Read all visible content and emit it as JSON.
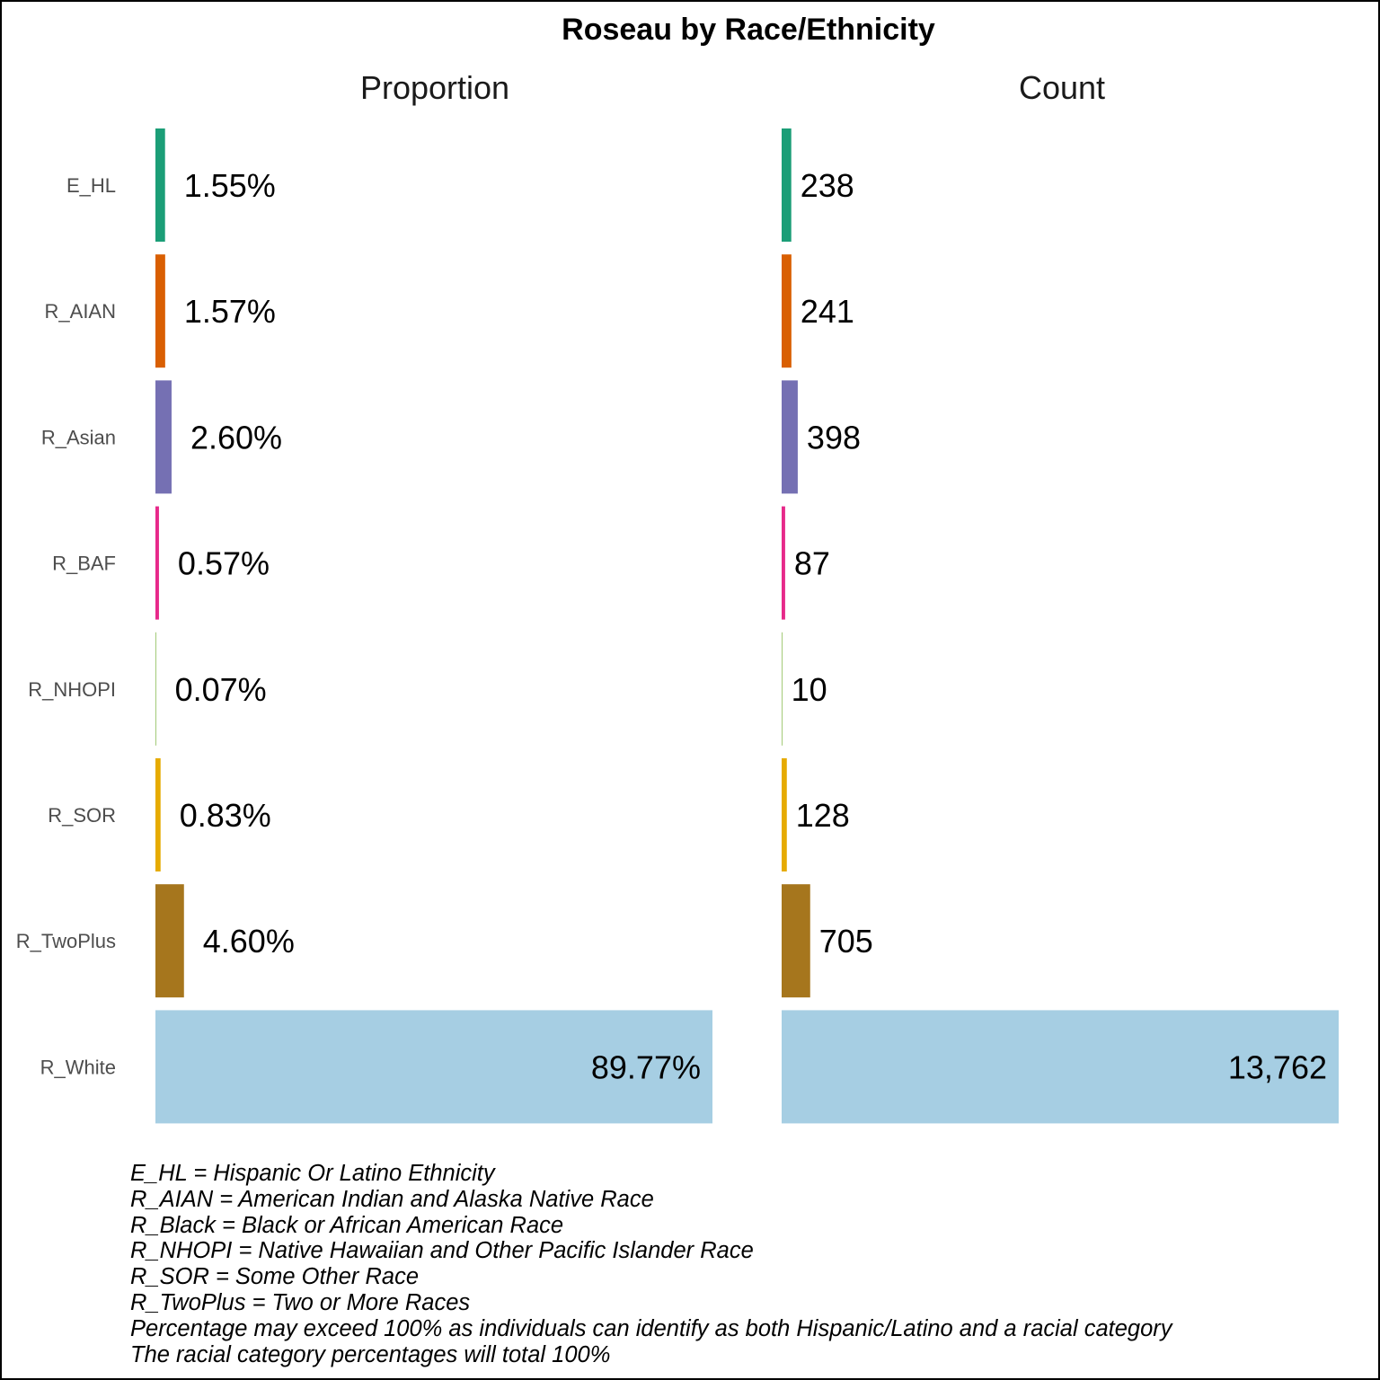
{
  "chart_data": {
    "type": "bar",
    "orientation": "horizontal",
    "title": "Roseau by Race/Ethnicity",
    "panels": [
      "Proportion",
      "Count"
    ],
    "categories": [
      "E_HL",
      "R_AIAN",
      "R_Asian",
      "R_BAF",
      "R_NHOPI",
      "R_SOR",
      "R_TwoPlus",
      "R_White"
    ],
    "proportion": [
      1.55,
      1.57,
      2.6,
      0.57,
      0.07,
      0.83,
      4.6,
      89.77
    ],
    "proportion_labels": [
      "1.55%",
      "1.57%",
      "2.60%",
      "0.57%",
      "0.07%",
      "0.83%",
      "4.60%",
      "89.77%"
    ],
    "count": [
      238,
      241,
      398,
      87,
      10,
      128,
      705,
      13762
    ],
    "count_labels": [
      "238",
      "241",
      "398",
      "87",
      "10",
      "128",
      "705",
      "13,762"
    ],
    "colors": [
      "#1b9e77",
      "#d95f02",
      "#7570b3",
      "#e7298a",
      "#66a61e",
      "#e6ab02",
      "#a6761d",
      "#a6cee3"
    ],
    "grid": false,
    "legend": "none"
  },
  "notes": [
    "E_HL = Hispanic Or Latino Ethnicity",
    "R_AIAN = American Indian and Alaska Native Race",
    "R_Black = Black or African American Race",
    "R_NHOPI = Native Hawaiian and Other Pacific Islander Race",
    "R_SOR = Some Other Race",
    "R_TwoPlus = Two or More Races",
    "Percentage may exceed 100% as individuals can identify as both Hispanic/Latino and a racial category",
    "The racial category percentages will total 100%"
  ]
}
